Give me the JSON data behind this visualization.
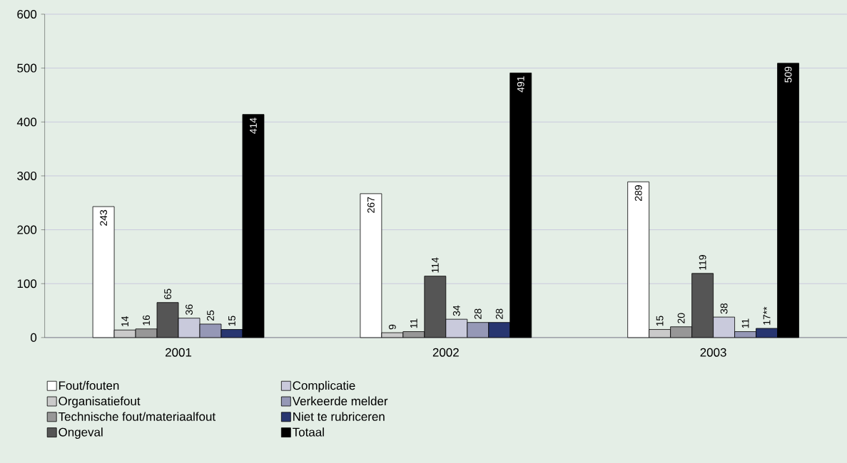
{
  "chart_data": {
    "type": "bar",
    "categories": [
      "2001",
      "2002",
      "2003"
    ],
    "series": [
      {
        "name": "Fout/fouten",
        "color": "#ffffff",
        "values": [
          243,
          267,
          289
        ],
        "value_labels": [
          "243",
          "267",
          "289"
        ]
      },
      {
        "name": "Organisatiefout",
        "color": "#cacaca",
        "values": [
          14,
          9,
          15
        ],
        "value_labels": [
          "14",
          "9",
          "15"
        ]
      },
      {
        "name": "Technische fout/materiaalfout",
        "color": "#979797",
        "values": [
          16,
          11,
          20
        ],
        "value_labels": [
          "16",
          "11",
          "20"
        ]
      },
      {
        "name": "Ongeval",
        "color": "#555555",
        "values": [
          65,
          114,
          119
        ],
        "value_labels": [
          "65",
          "114",
          "119"
        ]
      },
      {
        "name": "Complicatie",
        "color": "#c9cadc",
        "values": [
          36,
          34,
          38
        ],
        "value_labels": [
          "36",
          "34",
          "38"
        ]
      },
      {
        "name": "Verkeerde melder",
        "color": "#9598b6",
        "values": [
          25,
          28,
          11
        ],
        "value_labels": [
          "25",
          "28",
          "11"
        ]
      },
      {
        "name": "Niet te rubriceren",
        "color": "#283670",
        "values": [
          15,
          28,
          17
        ],
        "value_labels": [
          "15",
          "28",
          "17**"
        ]
      },
      {
        "name": "Totaal",
        "color": "#000000",
        "values": [
          414,
          491,
          509
        ],
        "value_labels": [
          "414",
          "491",
          "509"
        ]
      }
    ],
    "ylim": [
      0,
      600
    ],
    "yticks": [
      0,
      100,
      200,
      300,
      400,
      500,
      600
    ],
    "grid": "y",
    "legend": "bottom"
  }
}
